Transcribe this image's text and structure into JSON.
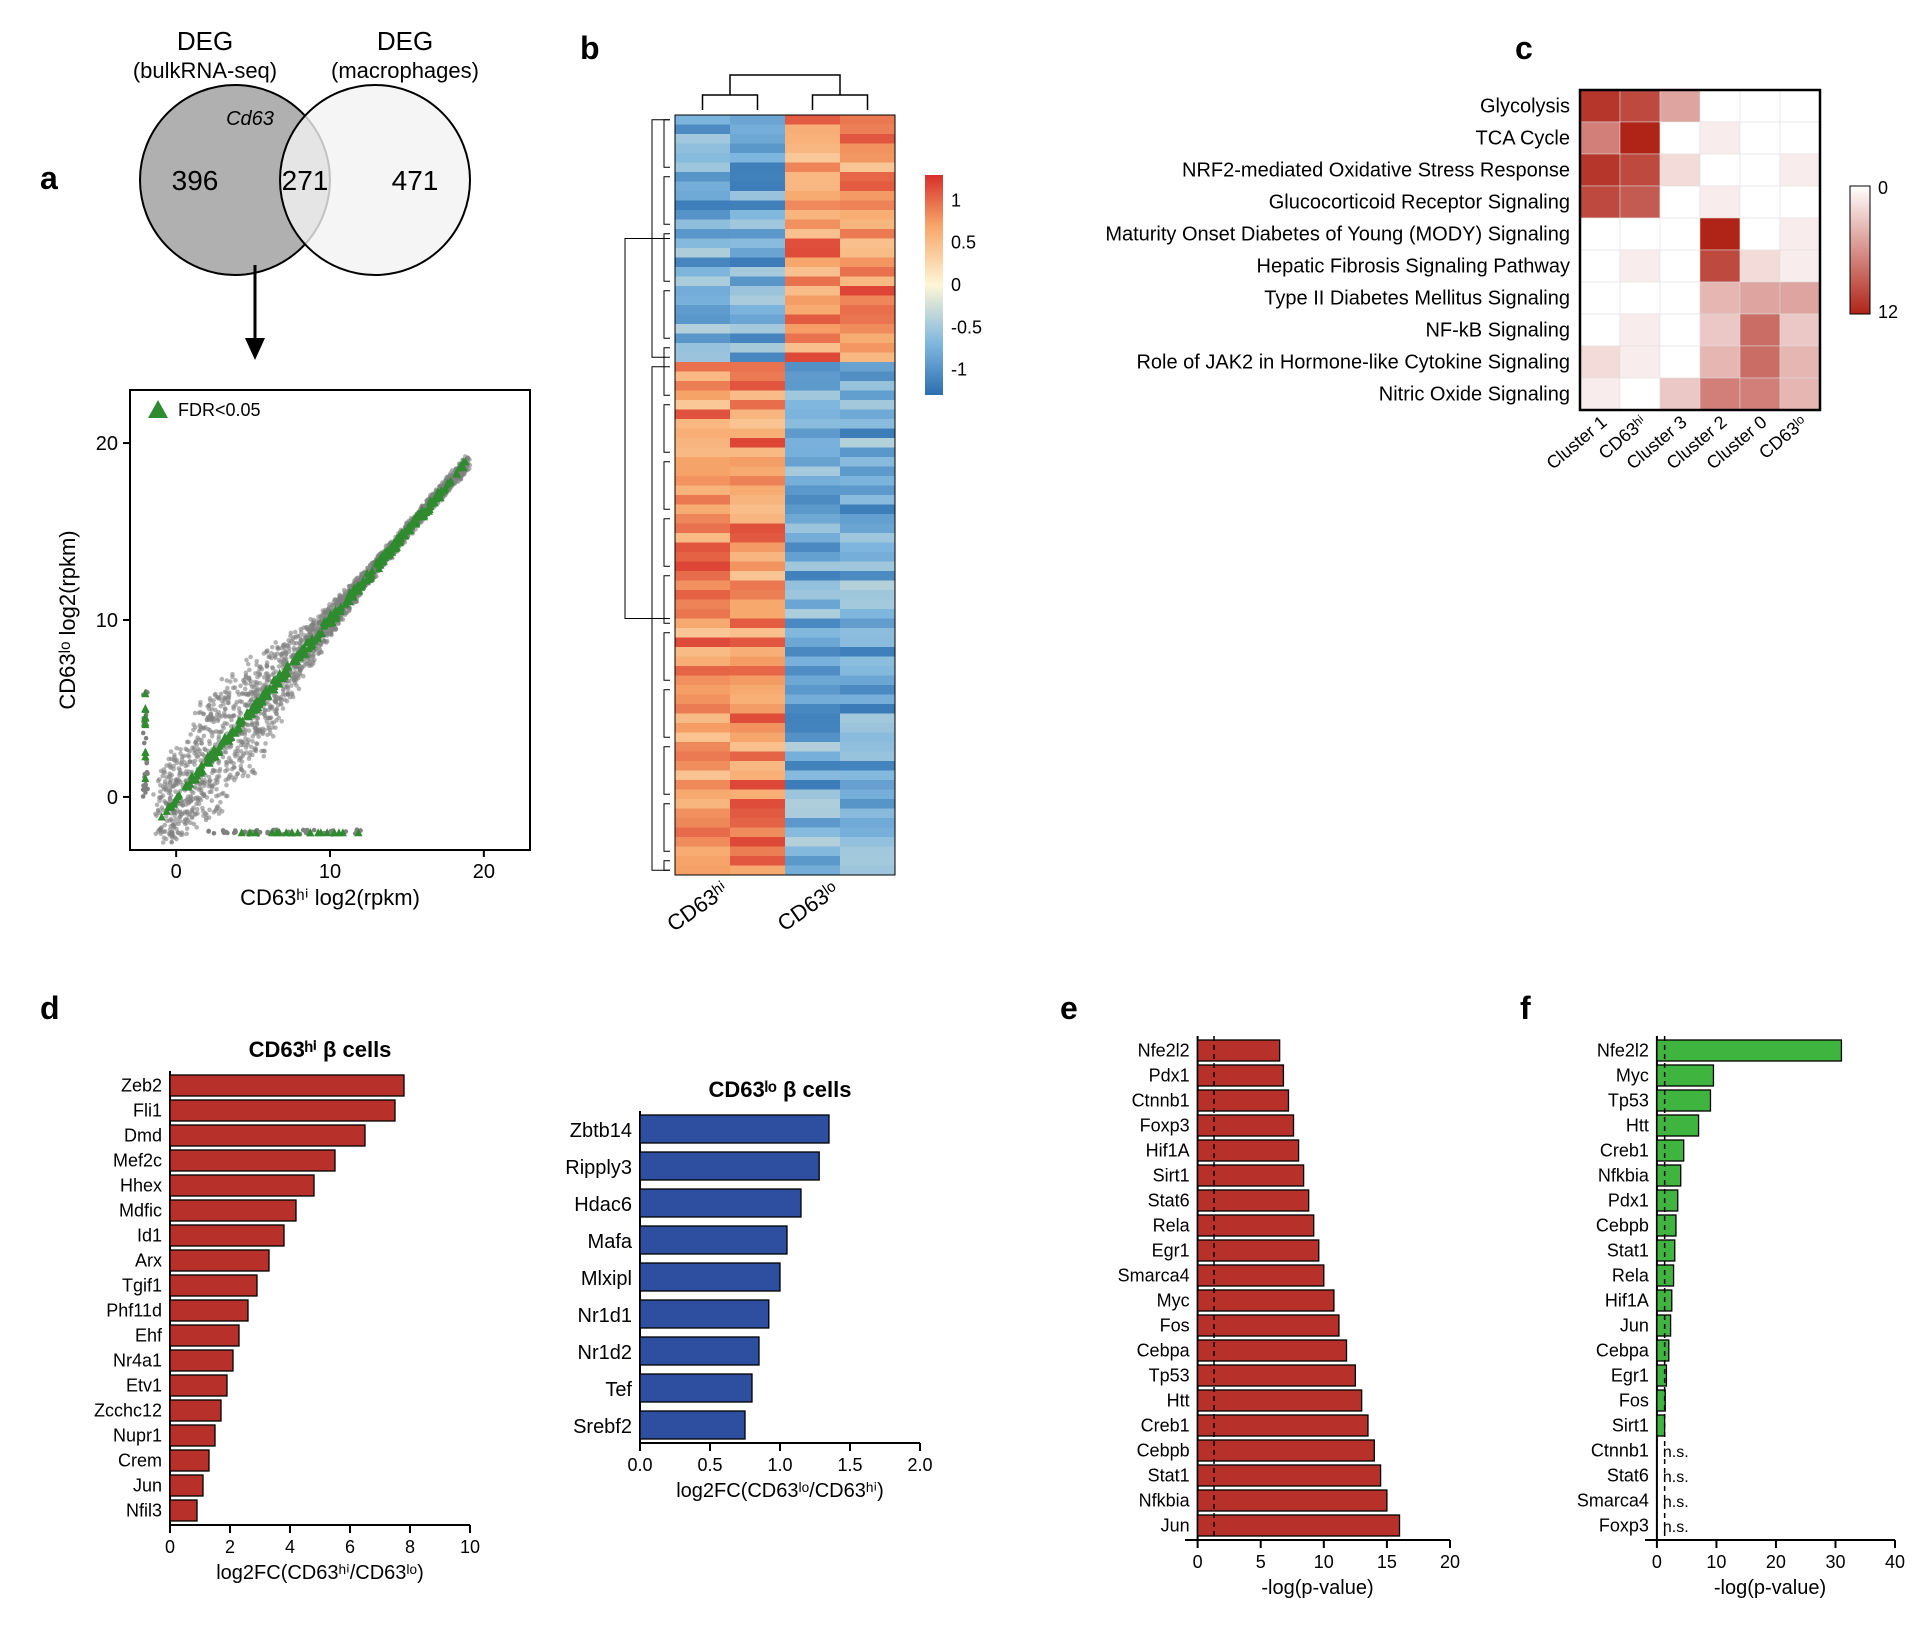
{
  "panel_labels": {
    "a": "a",
    "b": "b",
    "c": "c",
    "d": "d",
    "e": "e",
    "f": "f"
  },
  "a": {
    "venn": {
      "left_title": "DEG",
      "left_sub": "(bulkRNA-seq)",
      "right_title": "DEG",
      "right_sub": "(macrophages)",
      "left_count": "396",
      "overlap_count": "271",
      "right_count": "471",
      "overlap_gene": "Cd63",
      "left_fill": "#b0b0b0",
      "right_fill": "#f2f2f2",
      "stroke": "#000"
    },
    "scatter": {
      "xlabel": "CD63ʰⁱ log2(rpkm)",
      "ylabel": "CD63ˡᵒ log2(rpkm)",
      "legend": "FDR<0.05",
      "xlim": [
        -3,
        23
      ],
      "ylim": [
        -3,
        23
      ],
      "xtick": [
        0,
        10,
        20
      ],
      "ytick": [
        0,
        10,
        20
      ],
      "grey": "#808080",
      "green": "#2e8b2e",
      "seed": 17
    }
  },
  "b": {
    "x_labels": [
      "CD63ʰⁱ",
      "CD63ˡᵒ"
    ],
    "colorscale": {
      "min": -1.3,
      "max": 1.3,
      "ticks": [
        -1,
        -0.5,
        0,
        0.5,
        1
      ],
      "stops": [
        {
          "v": -1.3,
          "c": "#2c6fb0"
        },
        {
          "v": -0.7,
          "c": "#7eb6de"
        },
        {
          "v": 0,
          "c": "#fef6d6"
        },
        {
          "v": 0.7,
          "c": "#f7a66a"
        },
        {
          "v": 1.3,
          "c": "#d7302a"
        }
      ]
    },
    "cols": 4,
    "split_col": 2,
    "rows": 80,
    "seed": 42
  },
  "c": {
    "rows": [
      "Glycolysis",
      "TCA Cycle",
      "NRF2-mediated Oxidative Stress Response",
      "Glucocorticoid Receptor Signaling",
      "Maturity Onset Diabetes of Young (MODY) Signaling",
      "Hepatic Fibrosis Signaling Pathway",
      "Type II Diabetes Mellitus Signaling",
      "NF-kB Signaling",
      "Role of JAK2 in Hormone-like Cytokine Signaling",
      "Nitric Oxide Signaling"
    ],
    "cols": [
      "Cluster 1",
      "CD63ʰⁱ",
      "Cluster 3",
      "Cluster 2",
      "Cluster 0",
      "CD63ˡᵒ"
    ],
    "data": [
      [
        11,
        10,
        5,
        0,
        0,
        0
      ],
      [
        7,
        12,
        0,
        1,
        0,
        0
      ],
      [
        11,
        10,
        2,
        0,
        0,
        1
      ],
      [
        10,
        9,
        0,
        1,
        0,
        0
      ],
      [
        0,
        0,
        0,
        12,
        0,
        1
      ],
      [
        0,
        1,
        0,
        10,
        2,
        1
      ],
      [
        0,
        0,
        0,
        4,
        5,
        5
      ],
      [
        0,
        1,
        0,
        3,
        8,
        3
      ],
      [
        2,
        1,
        0,
        4,
        8,
        4
      ],
      [
        1,
        0,
        3,
        7,
        7,
        4
      ]
    ],
    "scale": {
      "min": 0,
      "max": 12,
      "low": "#ffffff",
      "high": "#b02418",
      "ticks": [
        "0",
        "12"
      ]
    }
  },
  "d": {
    "hi": {
      "title": "CD63ʰⁱ β cells",
      "xlabel": "log2FC(CD63ʰⁱ/CD63ˡᵒ)",
      "xlim": [
        0,
        10
      ],
      "xticks": [
        0,
        2,
        4,
        6,
        8,
        10
      ],
      "color": "#b7312a",
      "border": "#000",
      "bars": [
        {
          "l": "Zeb2",
          "v": 7.8
        },
        {
          "l": "Fli1",
          "v": 7.5
        },
        {
          "l": "Dmd",
          "v": 6.5
        },
        {
          "l": "Mef2c",
          "v": 5.5
        },
        {
          "l": "Hhex",
          "v": 4.8
        },
        {
          "l": "Mdfic",
          "v": 4.2
        },
        {
          "l": "Id1",
          "v": 3.8
        },
        {
          "l": "Arx",
          "v": 3.3
        },
        {
          "l": "Tgif1",
          "v": 2.9
        },
        {
          "l": "Phf11d",
          "v": 2.6
        },
        {
          "l": "Ehf",
          "v": 2.3
        },
        {
          "l": "Nr4a1",
          "v": 2.1
        },
        {
          "l": "Etv1",
          "v": 1.9
        },
        {
          "l": "Zcchc12",
          "v": 1.7
        },
        {
          "l": "Nupr1",
          "v": 1.5
        },
        {
          "l": "Crem",
          "v": 1.3
        },
        {
          "l": "Jun",
          "v": 1.1
        },
        {
          "l": "Nfil3",
          "v": 0.9
        }
      ]
    },
    "lo": {
      "title": "CD63ˡᵒ β cells",
      "xlabel": "log2FC(CD63ˡᵒ/CD63ʰⁱ)",
      "xlim": [
        0,
        2
      ],
      "xticks": [
        0.0,
        0.5,
        1.0,
        1.5,
        2.0
      ],
      "color": "#2e4ea0",
      "border": "#000",
      "bars": [
        {
          "l": "Zbtb14",
          "v": 1.35
        },
        {
          "l": "Ripply3",
          "v": 1.28
        },
        {
          "l": "Hdac6",
          "v": 1.15
        },
        {
          "l": "Mafa",
          "v": 1.05
        },
        {
          "l": "Mlxipl",
          "v": 1.0
        },
        {
          "l": "Nr1d1",
          "v": 0.92
        },
        {
          "l": "Nr1d2",
          "v": 0.85
        },
        {
          "l": "Tef",
          "v": 0.8
        },
        {
          "l": "Srebf2",
          "v": 0.75
        }
      ]
    }
  },
  "e": {
    "xlabel": "-log(p-value)",
    "xlim": [
      -1,
      20
    ],
    "xticks": [
      0,
      5,
      10,
      15,
      20
    ],
    "color": "#b7312a",
    "border": "#000",
    "dash_x": 1.3,
    "bars": [
      {
        "l": "Nfe2l2",
        "v": 6.5
      },
      {
        "l": "Pdx1",
        "v": 6.8
      },
      {
        "l": "Ctnnb1",
        "v": 7.2
      },
      {
        "l": "Foxp3",
        "v": 7.6
      },
      {
        "l": "Hif1A",
        "v": 8.0
      },
      {
        "l": "Sirt1",
        "v": 8.4
      },
      {
        "l": "Stat6",
        "v": 8.8
      },
      {
        "l": "Rela",
        "v": 9.2
      },
      {
        "l": "Egr1",
        "v": 9.6
      },
      {
        "l": "Smarca4",
        "v": 10.0
      },
      {
        "l": "Myc",
        "v": 10.8
      },
      {
        "l": "Fos",
        "v": 11.2
      },
      {
        "l": "Cebpa",
        "v": 11.8
      },
      {
        "l": "Tp53",
        "v": 12.5
      },
      {
        "l": "Htt",
        "v": 13.0
      },
      {
        "l": "Creb1",
        "v": 13.5
      },
      {
        "l": "Cebpb",
        "v": 14.0
      },
      {
        "l": "Stat1",
        "v": 14.5
      },
      {
        "l": "Nfkbia",
        "v": 15.0
      },
      {
        "l": "Jun",
        "v": 16.0
      }
    ]
  },
  "f": {
    "xlabel": "-log(p-value)",
    "xlim": [
      -2,
      40
    ],
    "xticks": [
      0,
      10,
      20,
      30,
      40
    ],
    "color": "#3fb53f",
    "border": "#000",
    "dash_x": 1.3,
    "ns": "n.s.",
    "bars": [
      {
        "l": "Nfe2l2",
        "v": 31
      },
      {
        "l": "Myc",
        "v": 9.5
      },
      {
        "l": "Tp53",
        "v": 9
      },
      {
        "l": "Htt",
        "v": 7
      },
      {
        "l": "Creb1",
        "v": 4.5
      },
      {
        "l": "Nfkbia",
        "v": 4
      },
      {
        "l": "Pdx1",
        "v": 3.5
      },
      {
        "l": "Cebpb",
        "v": 3.2
      },
      {
        "l": "Stat1",
        "v": 3
      },
      {
        "l": "Rela",
        "v": 2.8
      },
      {
        "l": "Hif1A",
        "v": 2.5
      },
      {
        "l": "Jun",
        "v": 2.3
      },
      {
        "l": "Cebpa",
        "v": 2
      },
      {
        "l": "Egr1",
        "v": 1.6
      },
      {
        "l": "Fos",
        "v": 1.4
      },
      {
        "l": "Sirt1",
        "v": 1.3
      },
      {
        "l": "Ctnnb1",
        "v": 0,
        "ns": true
      },
      {
        "l": "Stat6",
        "v": 0,
        "ns": true
      },
      {
        "l": "Smarca4",
        "v": 0,
        "ns": true
      },
      {
        "l": "Foxp3",
        "v": 0,
        "ns": true
      }
    ]
  }
}
